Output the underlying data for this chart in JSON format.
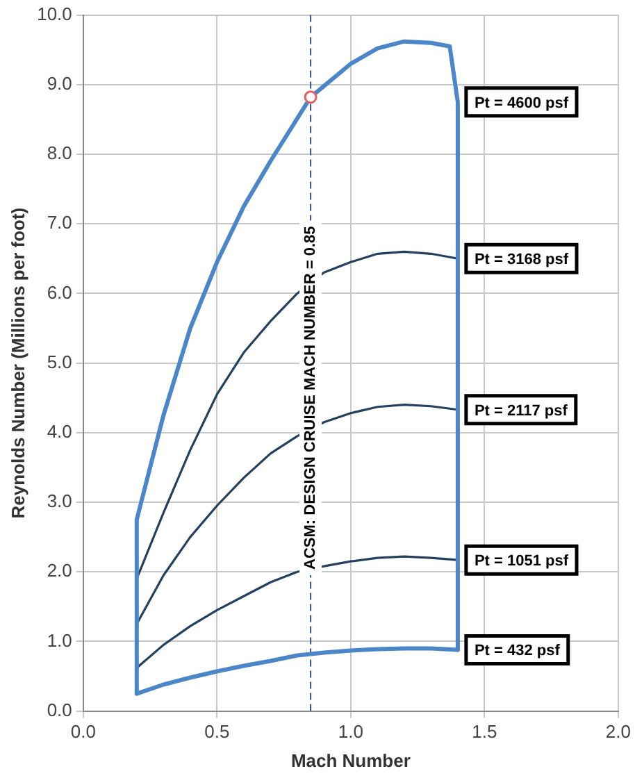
{
  "chart_data": {
    "type": "line",
    "xlabel": "Mach Number",
    "ylabel": "Reynolds Number (Millions per foot)",
    "xlim": [
      0,
      2
    ],
    "xticks": [
      {
        "value": 0,
        "label": "0.0"
      },
      {
        "value": 0.5,
        "label": "0.5"
      },
      {
        "value": 1,
        "label": "1.0"
      },
      {
        "value": 1.5,
        "label": "1.5"
      },
      {
        "value": 2,
        "label": "2.0"
      }
    ],
    "ylim": [
      0,
      10
    ],
    "yticks": [
      {
        "value": 0,
        "label": "0.0"
      },
      {
        "value": 1,
        "label": "1.0"
      },
      {
        "value": 2,
        "label": "2.0"
      },
      {
        "value": 3,
        "label": "3.0"
      },
      {
        "value": 4,
        "label": "4.0"
      },
      {
        "value": 5,
        "label": "5.0"
      },
      {
        "value": 6,
        "label": "6.0"
      },
      {
        "value": 7,
        "label": "7.0"
      },
      {
        "value": 8,
        "label": "8.0"
      },
      {
        "value": 9,
        "label": "9.0"
      },
      {
        "value": 10,
        "label": "10.0"
      }
    ],
    "grid": true,
    "legend": false,
    "marker": "none",
    "line_style": "solid",
    "series": [
      {
        "name": "Pt = 4600 psf",
        "color": "#4a86c8",
        "x": [
          0.2,
          0.2,
          0.3,
          0.4,
          0.5,
          0.6,
          0.7,
          0.85,
          1.0,
          1.1,
          1.2,
          1.3,
          1.37,
          1.4,
          1.4
        ],
        "values": [
          0.25,
          2.75,
          4.25,
          5.5,
          6.45,
          7.25,
          7.9,
          8.82,
          9.3,
          9.52,
          9.62,
          9.6,
          9.55,
          8.75,
          0.88
        ]
      },
      {
        "name": "Pt = 3168 psf",
        "color": "#23405e",
        "x": [
          0.2,
          0.3,
          0.4,
          0.5,
          0.6,
          0.7,
          0.8,
          0.9,
          1.0,
          1.1,
          1.2,
          1.3,
          1.4
        ],
        "values": [
          1.9,
          2.85,
          3.75,
          4.55,
          5.15,
          5.6,
          6.0,
          6.3,
          6.45,
          6.57,
          6.6,
          6.57,
          6.5
        ]
      },
      {
        "name": "Pt = 2117 psf",
        "color": "#23405e",
        "x": [
          0.2,
          0.3,
          0.4,
          0.5,
          0.6,
          0.7,
          0.8,
          0.9,
          1.0,
          1.1,
          1.2,
          1.3,
          1.4
        ],
        "values": [
          1.25,
          1.95,
          2.5,
          2.95,
          3.35,
          3.7,
          3.95,
          4.15,
          4.28,
          4.37,
          4.4,
          4.38,
          4.33
        ]
      },
      {
        "name": "Pt = 1051 psf",
        "color": "#23405e",
        "x": [
          0.2,
          0.3,
          0.4,
          0.5,
          0.6,
          0.7,
          0.8,
          0.9,
          1.0,
          1.1,
          1.2,
          1.3,
          1.4
        ],
        "values": [
          0.62,
          0.95,
          1.22,
          1.45,
          1.65,
          1.85,
          2.0,
          2.08,
          2.15,
          2.2,
          2.22,
          2.2,
          2.17
        ]
      },
      {
        "name": "Pt = 432 psf",
        "color": "#4a86c8",
        "x": [
          0.2,
          0.3,
          0.4,
          0.5,
          0.6,
          0.7,
          0.8,
          0.9,
          1.0,
          1.1,
          1.2,
          1.3,
          1.4
        ],
        "values": [
          0.25,
          0.38,
          0.48,
          0.57,
          0.65,
          0.72,
          0.8,
          0.84,
          0.87,
          0.89,
          0.9,
          0.9,
          0.88
        ]
      },
      {
        "type": "scatter",
        "marker": "circle",
        "color": "#e06060",
        "x": [
          0.85
        ],
        "values": [
          8.82
        ]
      }
    ],
    "ref_lines": [
      {
        "axis": "x",
        "value": 0.85,
        "label": "ACSM: DESIGN CRUISE MACH NUMBER = 0.85",
        "color": "#2f4f8f",
        "line_style": "dashed"
      }
    ]
  }
}
